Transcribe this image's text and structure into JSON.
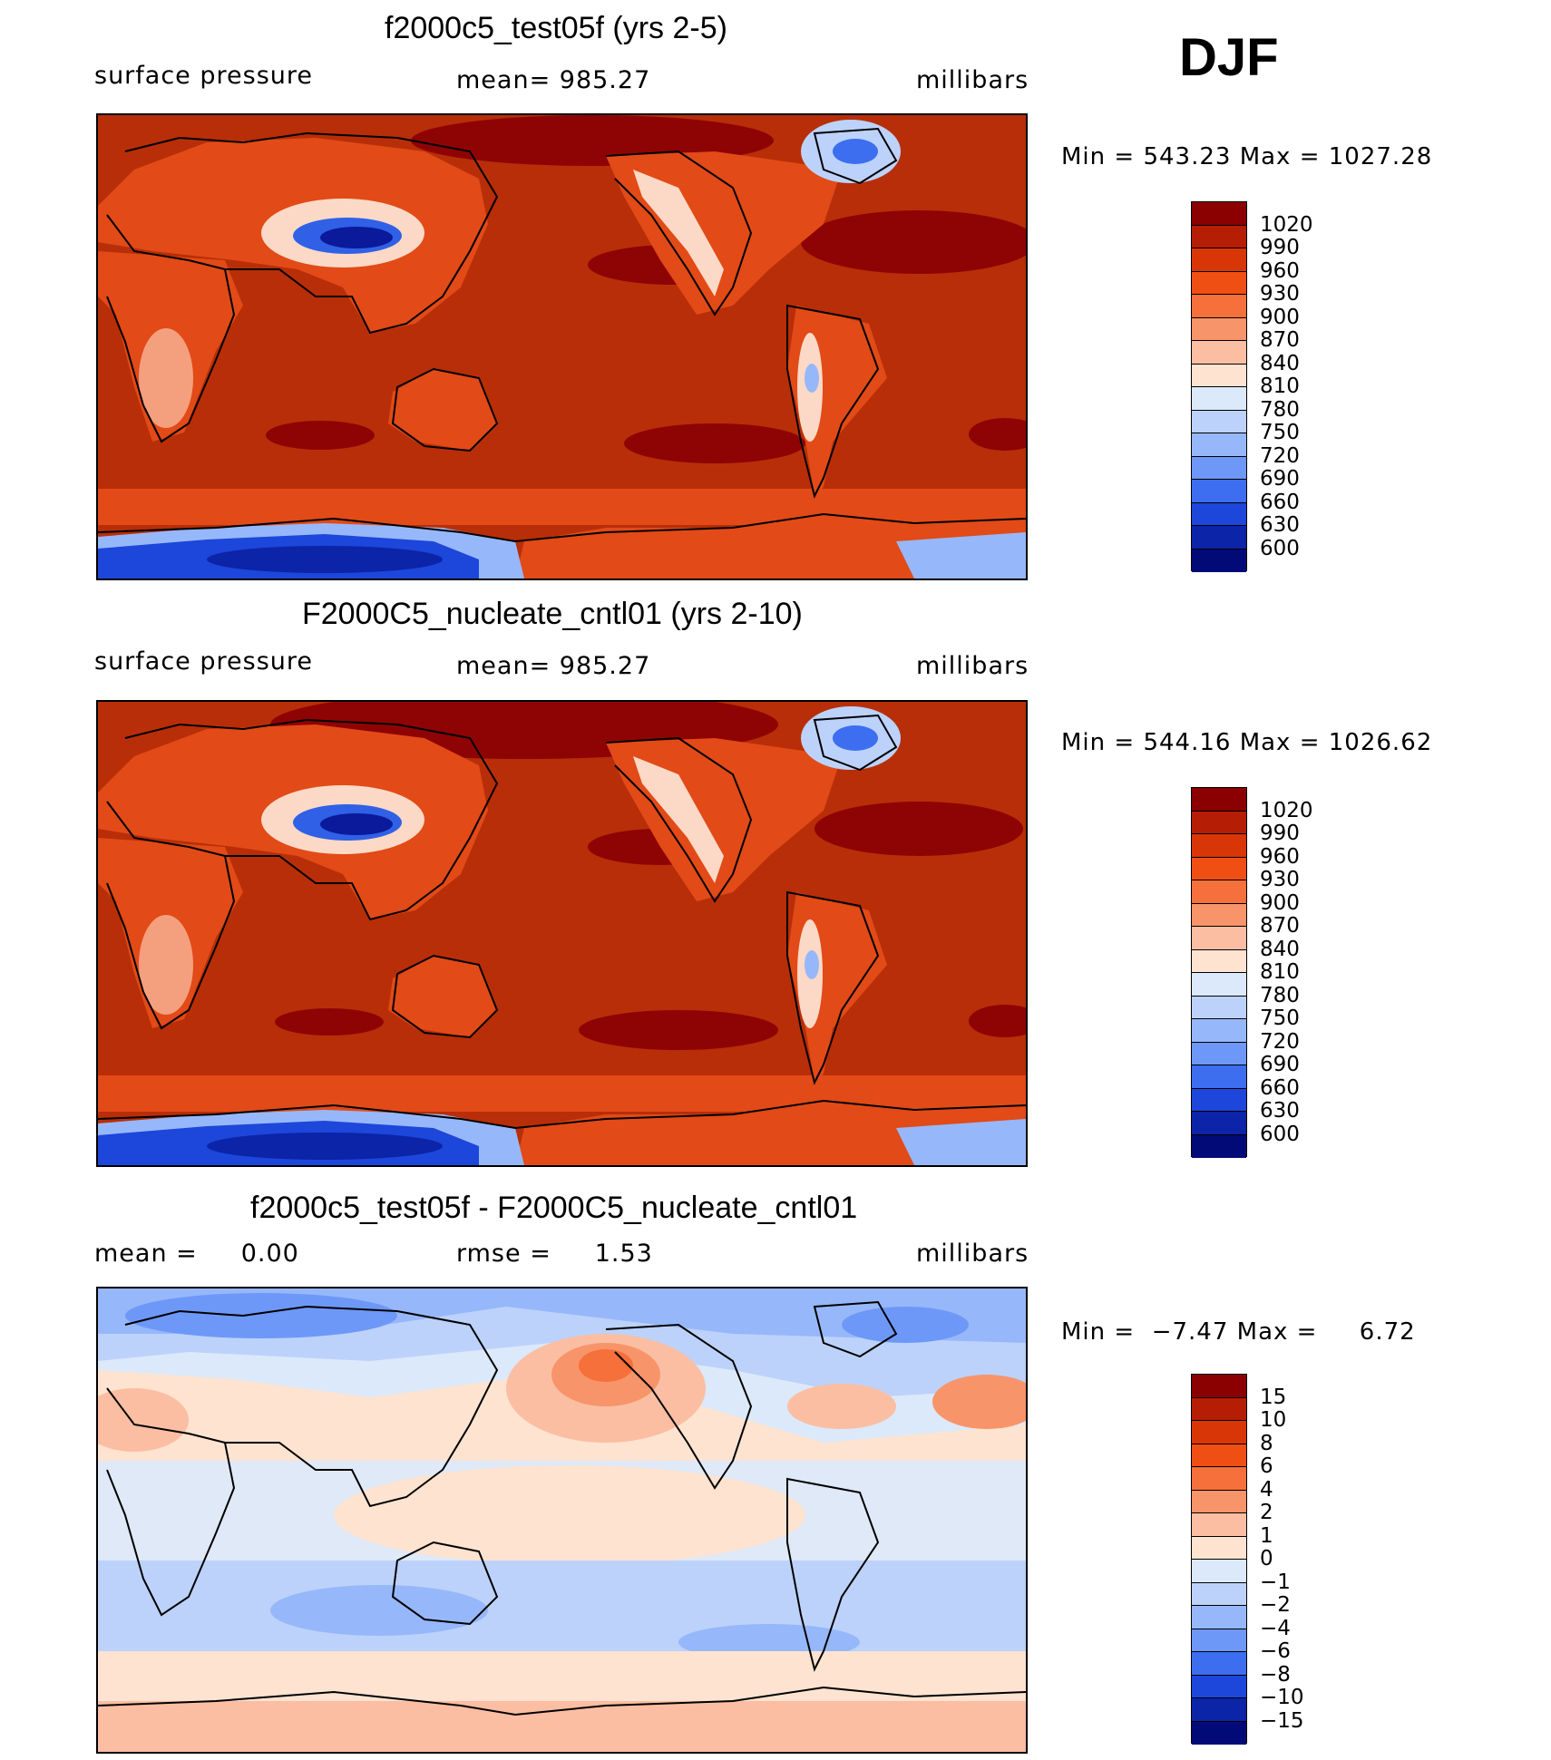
{
  "season": "DJF",
  "panels": [
    {
      "title": "f2000c5_test05f (yrs 2-5)",
      "left_label": "surface pressure",
      "center_label": "mean= 985.27",
      "right_label": "millibars",
      "min_max": "Min = 543.23 Max = 1027.28",
      "colorbar_labels": [
        "1020",
        "990",
        "960",
        "930",
        "900",
        "870",
        "840",
        "810",
        "780",
        "750",
        "720",
        "690",
        "660",
        "630",
        "600"
      ],
      "colorbar_colors": [
        "#8b0000",
        "#b51e04",
        "#d93608",
        "#f04f14",
        "#f5703a",
        "#f8946a",
        "#fbbea2",
        "#fde3d0",
        "#dbe9fb",
        "#bcd2fb",
        "#96b8fa",
        "#6e98f7",
        "#3d6ef0",
        "#1d46da",
        "#0b24a8",
        "#020a78"
      ],
      "map_colors": {
        "ocean": "#b82e08",
        "high_sea": "#8e0404",
        "land_low": "#e24a17",
        "land_mid": "#f4a07e",
        "land_high": "#fbd9c6",
        "plateau": "#3060e6",
        "plateau_core": "#0a1a9a",
        "antarctica_deep": "#1d46da",
        "antarctica_core": "#0b24a8",
        "antarctic_edge": "#96b8fa",
        "greenland": "#bcd2fb",
        "greenland_core": "#3d6ef0"
      }
    },
    {
      "title": "F2000C5_nucleate_cntl01 (yrs 2-10)",
      "left_label": "surface pressure",
      "center_label": "mean= 985.27",
      "right_label": "millibars",
      "min_max": "Min = 544.16 Max = 1026.62",
      "colorbar_labels": [
        "1020",
        "990",
        "960",
        "930",
        "900",
        "870",
        "840",
        "810",
        "780",
        "750",
        "720",
        "690",
        "660",
        "630",
        "600"
      ],
      "colorbar_colors": [
        "#8b0000",
        "#b51e04",
        "#d93608",
        "#f04f14",
        "#f5703a",
        "#f8946a",
        "#fbbea2",
        "#fde3d0",
        "#dbe9fb",
        "#bcd2fb",
        "#96b8fa",
        "#6e98f7",
        "#3d6ef0",
        "#1d46da",
        "#0b24a8",
        "#020a78"
      ],
      "map_colors": {
        "ocean": "#b82e08",
        "high_sea": "#8e0404",
        "land_low": "#e24a17",
        "land_mid": "#f4a07e",
        "land_high": "#fbd9c6",
        "plateau": "#3060e6",
        "plateau_core": "#0a1a9a",
        "antarctica_deep": "#1d46da",
        "antarctica_core": "#0b24a8",
        "antarctic_edge": "#96b8fa",
        "greenland": "#bcd2fb",
        "greenland_core": "#3d6ef0"
      }
    },
    {
      "title": "f2000c5_test05f - F2000C5_nucleate_cntl01",
      "left_label": "mean =     0.00",
      "center_label": "rmse =     1.53",
      "right_label": "millibars",
      "min_max": "Min =  −7.47 Max =     6.72",
      "colorbar_labels": [
        "15",
        "10",
        "8",
        "6",
        "4",
        "2",
        "1",
        "0",
        "−1",
        "−2",
        "−4",
        "−6",
        "−8",
        "−10",
        "−15"
      ],
      "colorbar_colors": [
        "#8b0000",
        "#b51e04",
        "#d93608",
        "#f04f14",
        "#f5703a",
        "#f8946a",
        "#fbbea2",
        "#fde3d0",
        "#dbe9fb",
        "#bcd2fb",
        "#96b8fa",
        "#6e98f7",
        "#3d6ef0",
        "#1d46da",
        "#0b24a8",
        "#020a78"
      ],
      "map_colors": {
        "base": "#fde3d0",
        "neg1": "#dbe9fb",
        "neg2": "#bcd2fb",
        "neg4": "#96b8fa",
        "neg6": "#6e98f7",
        "pos2": "#fbbea2",
        "pos4": "#f8946a",
        "pos6": "#f5703a"
      }
    }
  ]
}
